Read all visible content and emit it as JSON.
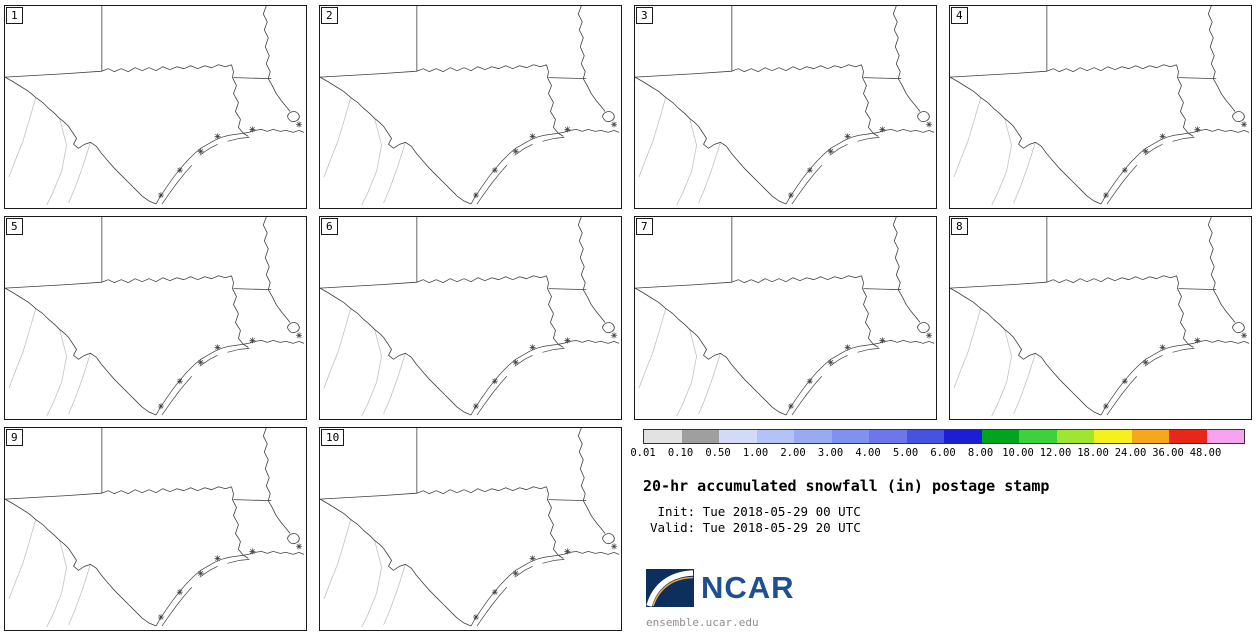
{
  "panels": [
    {
      "label": "1"
    },
    {
      "label": "2"
    },
    {
      "label": "3"
    },
    {
      "label": "4"
    },
    {
      "label": "5"
    },
    {
      "label": "6"
    },
    {
      "label": "7"
    },
    {
      "label": "8"
    },
    {
      "label": "9"
    },
    {
      "label": "10"
    }
  ],
  "legend": {
    "colorbar": {
      "ticks": [
        "0.01",
        "0.10",
        "0.50",
        "1.00",
        "2.00",
        "3.00",
        "4.00",
        "5.00",
        "6.00",
        "8.00",
        "10.00",
        "12.00",
        "18.00",
        "24.00",
        "36.00",
        "48.00"
      ],
      "colors": [
        "#e2e2e2",
        "#9f9f9f",
        "#d2daf8",
        "#b3c3f5",
        "#97abf1",
        "#7f93ee",
        "#6b77ea",
        "#4553e1",
        "#1b1fd1",
        "#00a41f",
        "#3ed13e",
        "#9fe632",
        "#f5f01e",
        "#f5a81e",
        "#e8261a",
        "#f6a4ef"
      ]
    },
    "title": "20-hr accumulated snowfall (in) postage stamp",
    "init_line": " Init: Tue 2018-05-29 00 UTC",
    "valid_line": "Valid: Tue 2018-05-29 20 UTC",
    "logo_text": "NCAR",
    "site": "ensemble.ucar.edu",
    "colors": {
      "logo_box": "#0d2f5e",
      "logo_text_blue": "#1d4f91"
    }
  }
}
